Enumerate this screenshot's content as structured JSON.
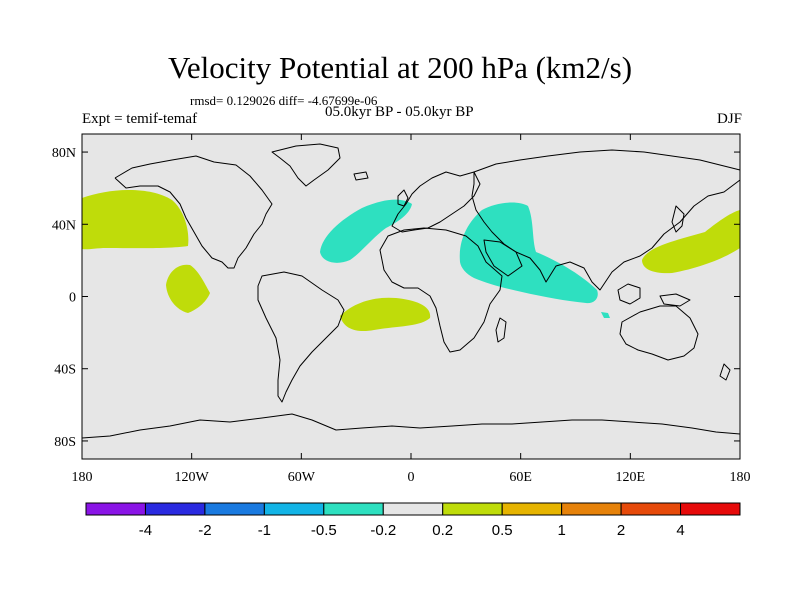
{
  "title": "Velocity Potential at 200 hPa (km2/s)",
  "stats": "rmsd= 0.129026 diff= -4.67699e-06",
  "left_subtitle": "Expt = temif-temaf",
  "center_subtitle": "05.0kyr BP - 05.0kyr BP",
  "right_subtitle": "DJF",
  "map": {
    "projection": "cylindrical-equidistant",
    "lon_range": [
      -180,
      180
    ],
    "lat_range": [
      -90,
      90
    ],
    "background_color": "#e6e6e6",
    "x_ticks": [
      {
        "lon": -180,
        "label": "180"
      },
      {
        "lon": -120,
        "label": "120W"
      },
      {
        "lon": -60,
        "label": "60W"
      },
      {
        "lon": 0,
        "label": "0"
      },
      {
        "lon": 60,
        "label": "60E"
      },
      {
        "lon": 120,
        "label": "120E"
      },
      {
        "lon": 180,
        "label": "180"
      }
    ],
    "y_ticks": [
      {
        "lat": 80,
        "label": "80N"
      },
      {
        "lat": 40,
        "label": "40N"
      },
      {
        "lat": 0,
        "label": "0"
      },
      {
        "lat": -40,
        "label": "40S"
      },
      {
        "lat": -80,
        "label": "80S"
      }
    ],
    "anomaly_regions": [
      {
        "name": "north-pacific-positive",
        "category": "0.2 to 0.5",
        "color": "#bfdc0a"
      },
      {
        "name": "tropical-east-pacific-positive",
        "category": "0.2 to 0.5",
        "color": "#bfdc0a"
      },
      {
        "name": "south-atlantic-positive",
        "category": "0.2 to 0.5",
        "color": "#bfdc0a"
      },
      {
        "name": "west-pacific-positive",
        "category": "0.2 to 0.5",
        "color": "#bfdc0a"
      },
      {
        "name": "north-atlantic-negative",
        "category": "-0.5 to -0.2",
        "color": "#2ee0c0"
      },
      {
        "name": "africa-indian-ocean-negative",
        "category": "-0.5 to -0.2",
        "color": "#2ee0c0"
      }
    ]
  },
  "colorbar": {
    "colors": [
      "#8a14e6",
      "#2a2ae0",
      "#1a7ae0",
      "#12b4e6",
      "#2ee0c0",
      "#e6e6e6",
      "#bfdc0a",
      "#e6b400",
      "#e6820a",
      "#e64a0a",
      "#e60a0a"
    ],
    "labels": [
      "-4",
      "-2",
      "-1",
      "-0.5",
      "-0.2",
      "0.2",
      "0.5",
      "1",
      "2",
      "4"
    ]
  }
}
